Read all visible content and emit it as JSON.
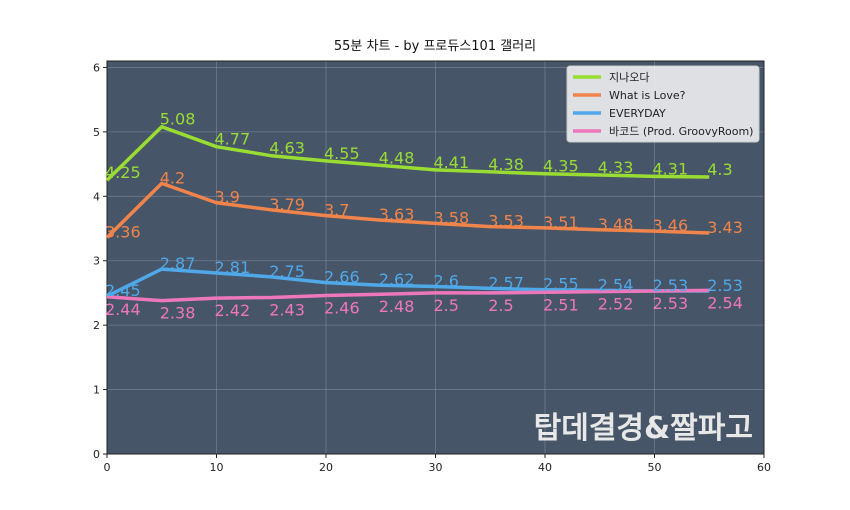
{
  "chart_data": {
    "type": "line",
    "title": "55분 차트 - by 프로듀스101 갤러리",
    "xlabel": "",
    "ylabel": "",
    "xlim": [
      0,
      60
    ],
    "ylim": [
      0,
      6.1
    ],
    "xticks": [
      0,
      10,
      20,
      30,
      40,
      50,
      60
    ],
    "yticks": [
      0,
      1,
      2,
      3,
      4,
      5,
      6
    ],
    "grid": true,
    "legend_position": "top-right",
    "background_color": "#475569",
    "x": [
      0,
      5,
      10,
      15,
      20,
      25,
      30,
      35,
      40,
      45,
      50,
      55
    ],
    "series": [
      {
        "name": "지나오다",
        "color": "#99dd33",
        "values": [
          4.25,
          5.08,
          4.77,
          4.63,
          4.55,
          4.48,
          4.41,
          4.38,
          4.35,
          4.33,
          4.31,
          4.3
        ]
      },
      {
        "name": "What is Love?",
        "color": "#f0844a",
        "values": [
          3.36,
          4.2,
          3.9,
          3.79,
          3.7,
          3.63,
          3.58,
          3.53,
          3.51,
          3.48,
          3.46,
          3.43
        ]
      },
      {
        "name": "EVERYDAY",
        "color": "#4fa8e8",
        "values": [
          2.45,
          2.87,
          2.81,
          2.75,
          2.66,
          2.62,
          2.6,
          2.57,
          2.55,
          2.54,
          2.53,
          2.53
        ]
      },
      {
        "name": "바코드 (Prod. GroovyRoom)",
        "color": "#ee77bb",
        "values": [
          2.44,
          2.38,
          2.42,
          2.43,
          2.46,
          2.48,
          2.5,
          2.5,
          2.51,
          2.52,
          2.53,
          2.54
        ]
      }
    ],
    "watermark": "탑데결경&짤파고"
  }
}
